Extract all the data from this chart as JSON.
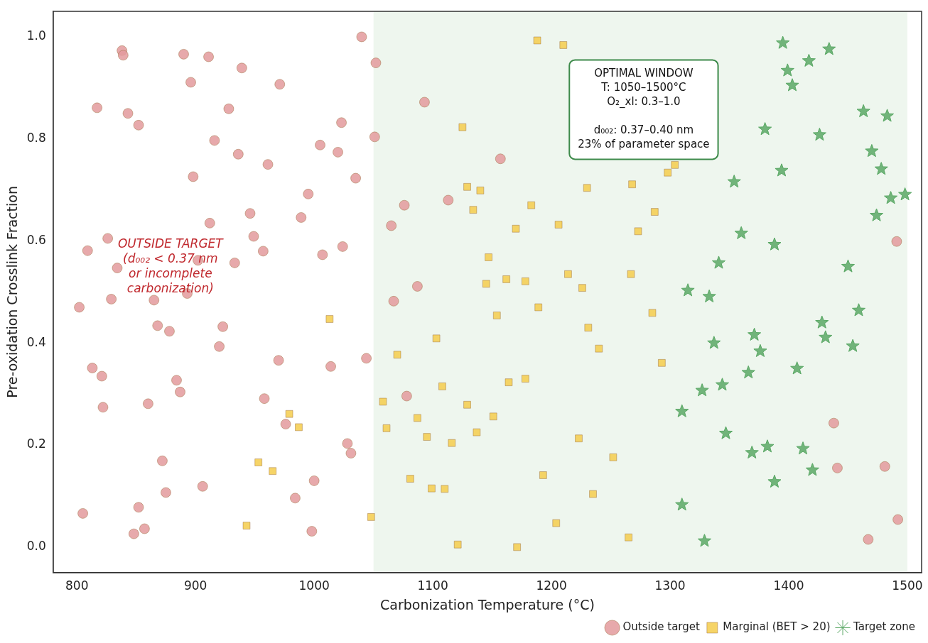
{
  "chart_data": {
    "type": "scatter",
    "xlabel": "Carbonization Temperature (°C)",
    "ylabel": "Pre-oxidation Crosslink Fraction",
    "xlim": [
      780,
      1512
    ],
    "ylim": [
      -0.05,
      1.05
    ],
    "xticks": [
      800,
      900,
      1000,
      1100,
      1200,
      1300,
      1400,
      1500
    ],
    "yticks": [
      {
        "value": 0,
        "label": "0.0"
      },
      0.2,
      0.4,
      0.6,
      0.8,
      {
        "value": 1,
        "label": "1.0"
      }
    ],
    "grid": false,
    "legend": "bottom right",
    "bands": [
      {
        "axis": "x",
        "from": 1050,
        "to": 1500,
        "color": "#eef6ee"
      }
    ],
    "annotations": [
      "OUTSIDE TARGET\n(d₀₀₂ < 0.37 nm\nor incomplete\ncarbonization)",
      "OPTIMAL WINDOW\nT: 1050–1500°C\nO₂_xl: 0.3–1.0\n\nd₀₀₂: 0.37–0.40 nm\n23% of parameter space"
    ],
    "series": [
      {
        "name": "Outside target",
        "color": "#e39a9c",
        "marker": "circle",
        "x": [
          1040,
          1052,
          838,
          839,
          890,
          911,
          939,
          896,
          971,
          817,
          843,
          852,
          928,
          1023,
          1051,
          916,
          1005,
          1020,
          936,
          961,
          1035,
          898,
          995,
          946,
          989,
          912,
          949,
          957,
          1007,
          1024,
          826,
          809,
          902,
          933,
          834,
          893,
          829,
          802,
          865,
          868,
          878,
          923,
          920,
          970,
          1014,
          1044,
          813,
          821,
          884,
          887,
          822,
          860,
          958,
          976,
          1028,
          1031,
          872,
          1000,
          906,
          875,
          984,
          805,
          852,
          857,
          848,
          998,
          1093,
          1157,
          1113,
          1076,
          1065,
          1087,
          1067,
          1078,
          1491,
          1438,
          1441,
          1481,
          1492,
          1467
        ],
        "values": [
          1.0,
          0.949,
          0.973,
          0.964,
          0.966,
          0.961,
          0.939,
          0.911,
          0.907,
          0.861,
          0.85,
          0.827,
          0.859,
          0.832,
          0.804,
          0.797,
          0.788,
          0.774,
          0.77,
          0.75,
          0.723,
          0.726,
          0.692,
          0.654,
          0.646,
          0.635,
          0.609,
          0.58,
          0.573,
          0.589,
          0.605,
          0.581,
          0.562,
          0.557,
          0.547,
          0.497,
          0.486,
          0.47,
          0.484,
          0.434,
          0.423,
          0.432,
          0.393,
          0.366,
          0.354,
          0.37,
          0.351,
          0.335,
          0.327,
          0.304,
          0.274,
          0.281,
          0.291,
          0.241,
          0.203,
          0.184,
          0.169,
          0.13,
          0.119,
          0.107,
          0.096,
          0.066,
          0.078,
          0.036,
          0.026,
          0.031,
          0.872,
          0.761,
          0.68,
          0.67,
          0.63,
          0.511,
          0.482,
          0.296,
          0.599,
          0.243,
          0.155,
          0.158,
          0.054,
          0.015
        ]
      },
      {
        "name": "Marginal (BET > 20)",
        "color": "#f5cd4c",
        "marker": "square",
        "x": [
          1188,
          1210,
          1125,
          1129,
          1140,
          1230,
          1268,
          1298,
          1304,
          1134,
          1183,
          1287,
          1170,
          1206,
          1273,
          1147,
          1145,
          1162,
          1178,
          1214,
          1226,
          1267,
          1189,
          1154,
          1285,
          1231,
          1240,
          1103,
          1070,
          1293,
          1164,
          1178,
          1108,
          1129,
          1058,
          1151,
          1087,
          1061,
          1137,
          1095,
          1116,
          1223,
          1252,
          1193,
          1081,
          1099,
          1110,
          1235,
          1048,
          1204,
          1265,
          1121,
          1171,
          1013,
          979,
          987,
          953,
          965,
          943
        ],
        "values": [
          0.993,
          0.984,
          0.823,
          0.706,
          0.699,
          0.704,
          0.711,
          0.734,
          0.749,
          0.661,
          0.67,
          0.657,
          0.624,
          0.632,
          0.619,
          0.568,
          0.516,
          0.525,
          0.521,
          0.535,
          0.508,
          0.535,
          0.47,
          0.454,
          0.459,
          0.43,
          0.389,
          0.409,
          0.377,
          0.361,
          0.323,
          0.33,
          0.315,
          0.279,
          0.285,
          0.256,
          0.253,
          0.233,
          0.225,
          0.216,
          0.204,
          0.213,
          0.176,
          0.141,
          0.134,
          0.115,
          0.114,
          0.104,
          0.059,
          0.047,
          0.019,
          0.005,
          0.0,
          0.447,
          0.261,
          0.235,
          0.166,
          0.149,
          0.042
        ]
      },
      {
        "name": "Target zone",
        "color": "#5aa865",
        "marker": "star",
        "x": [
          1395,
          1434,
          1417,
          1399,
          1403,
          1463,
          1483,
          1380,
          1426,
          1470,
          1478,
          1394,
          1354,
          1486,
          1498,
          1474,
          1360,
          1388,
          1341,
          1450,
          1315,
          1333,
          1459,
          1428,
          1371,
          1431,
          1337,
          1454,
          1376,
          1407,
          1366,
          1344,
          1327,
          1310,
          1347,
          1382,
          1412,
          1369,
          1420,
          1388,
          1310,
          1329
        ],
        "values": [
          0.988,
          0.976,
          0.953,
          0.934,
          0.905,
          0.854,
          0.845,
          0.819,
          0.808,
          0.776,
          0.741,
          0.738,
          0.716,
          0.684,
          0.691,
          0.65,
          0.615,
          0.593,
          0.557,
          0.55,
          0.503,
          0.491,
          0.464,
          0.44,
          0.416,
          0.411,
          0.4,
          0.394,
          0.384,
          0.35,
          0.342,
          0.318,
          0.307,
          0.266,
          0.223,
          0.197,
          0.193,
          0.185,
          0.151,
          0.128,
          0.083,
          0.012
        ]
      }
    ]
  }
}
